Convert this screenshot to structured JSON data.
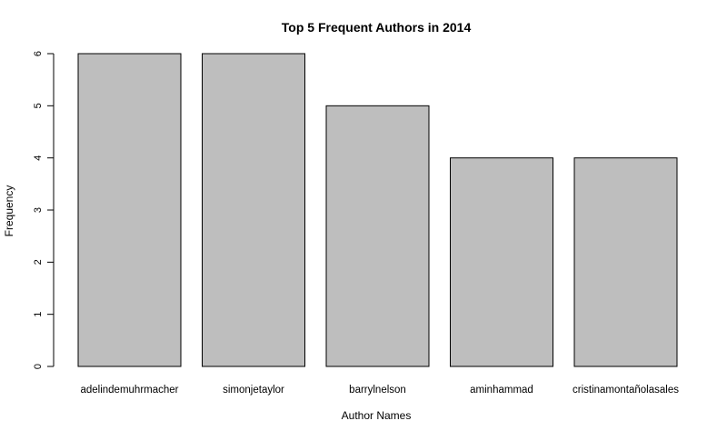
{
  "chart_data": {
    "type": "bar",
    "title": "Top 5 Frequent Authors in 2014",
    "xlabel": "Author Names",
    "ylabel": "Frequency",
    "categories": [
      "adelindemuhrmacher",
      "simonjetaylor",
      "barrylnelson",
      "aminhammad",
      "cristinamontañolasales"
    ],
    "values": [
      6,
      6,
      5,
      4,
      4
    ],
    "ylim": [
      0,
      6
    ],
    "yticks": [
      "0",
      "1",
      "2",
      "3",
      "4",
      "5",
      "6"
    ],
    "grid": false,
    "legend": "none",
    "bar_color": "#bebebe",
    "bar_edge_color": "#000000"
  }
}
